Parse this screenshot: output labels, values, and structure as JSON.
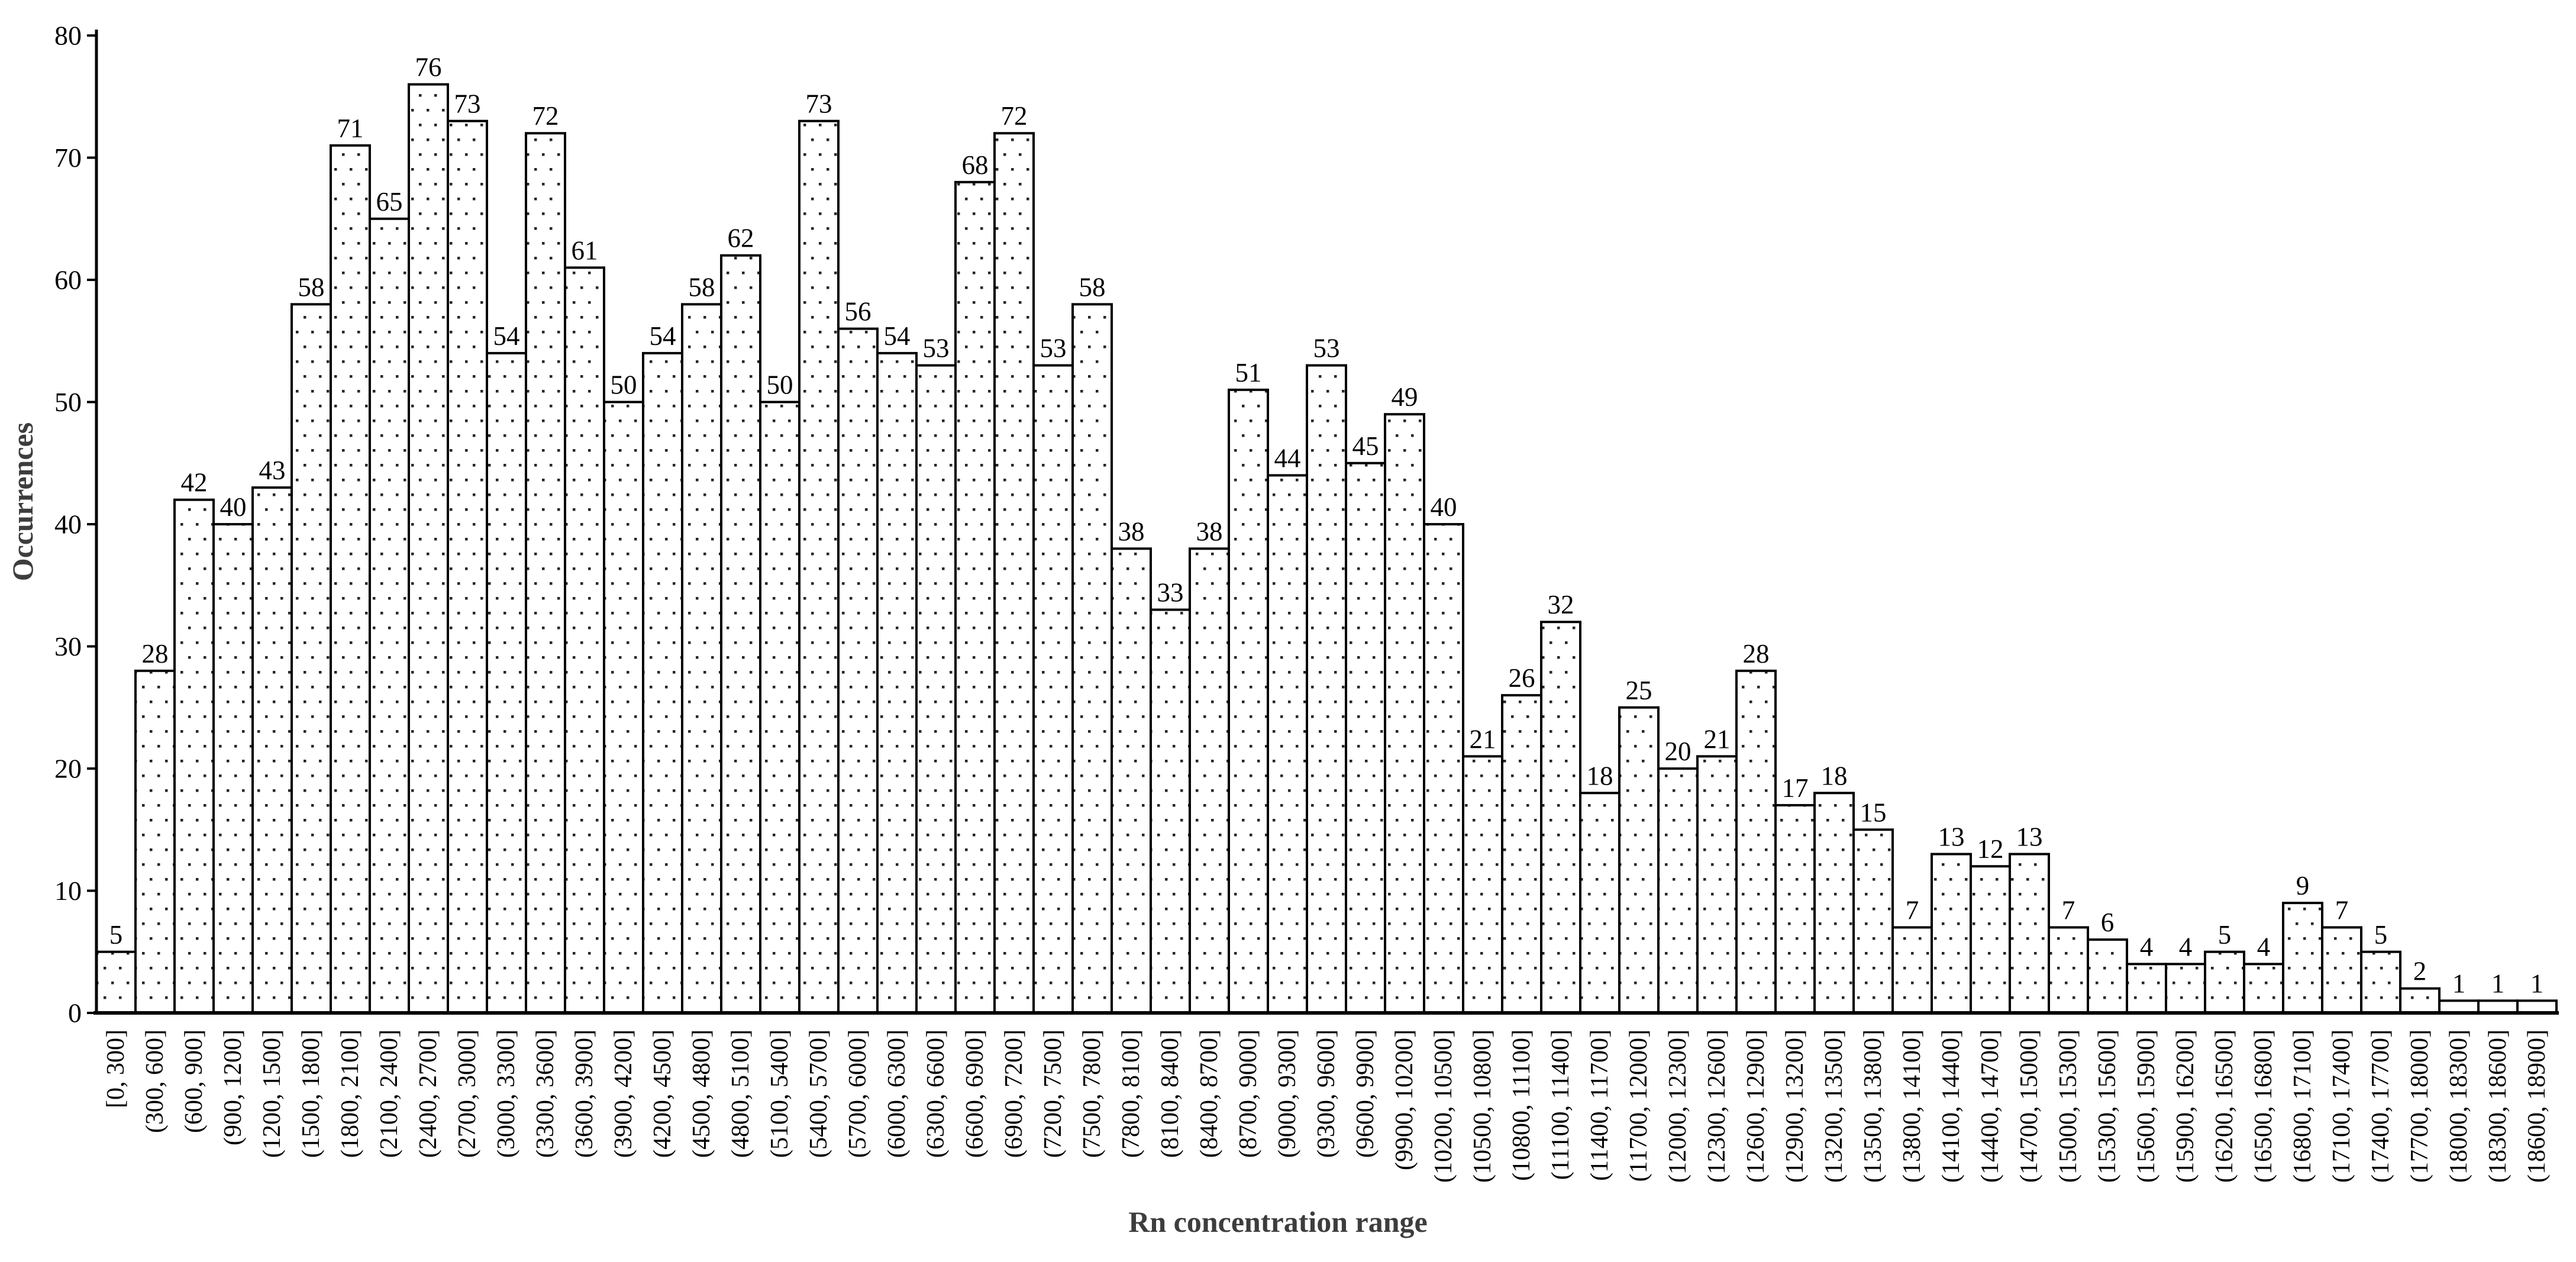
{
  "chart_data": {
    "type": "bar",
    "title": "",
    "xlabel": "Rn concentration range",
    "ylabel": "Occurrences",
    "ylim": [
      0,
      80
    ],
    "yticks": [
      0,
      10,
      20,
      30,
      40,
      50,
      60,
      70,
      80
    ],
    "grid": false,
    "legend": "none",
    "bar_style": "white bars with black outline and small dark polka-dot fill pattern, bars adjacent (histogram)",
    "categories": [
      "[0, 300]",
      "(300, 600]",
      "(600, 900]",
      "(900, 1200]",
      "(1200, 1500]",
      "(1500, 1800]",
      "(1800, 2100]",
      "(2100, 2400]",
      "(2400, 2700]",
      "(2700, 3000]",
      "(3000, 3300]",
      "(3300, 3600]",
      "(3600, 3900]",
      "(3900, 4200]",
      "(4200, 4500]",
      "(4500, 4800]",
      "(4800, 5100]",
      "(5100, 5400]",
      "(5400, 5700]",
      "(5700, 6000]",
      "(6000, 6300]",
      "(6300, 6600]",
      "(6600, 6900]",
      "(6900, 7200]",
      "(7200, 7500]",
      "(7500, 7800]",
      "(7800, 8100]",
      "(8100, 8400]",
      "(8400, 8700]",
      "(8700, 9000]",
      "(9000, 9300]",
      "(9300, 9600]",
      "(9600, 9900]",
      "(9900, 10200]",
      "(10200, 10500]",
      "(10500, 10800]",
      "(10800, 11100]",
      "(11100, 11400]",
      "(11400, 11700]",
      "(11700, 12000]",
      "(12000, 12300]",
      "(12300, 12600]",
      "(12600, 12900]",
      "(12900, 13200]",
      "(13200, 13500]",
      "(13500, 13800]",
      "(13800, 14100]",
      "(14100, 14400]",
      "(14400, 14700]",
      "(14700, 15000]",
      "(15000, 15300]",
      "(15300, 15600]",
      "(15600, 15900]",
      "(15900, 16200]",
      "(16200, 16500]",
      "(16500, 16800]",
      "(16800, 17100]",
      "(17100, 17400]",
      "(17400, 17700]",
      "(17700, 18000]",
      "(18000, 18300]",
      "(18300, 18600]",
      "(18600, 18900]"
    ],
    "values": [
      5,
      28,
      42,
      40,
      43,
      58,
      71,
      65,
      76,
      73,
      54,
      72,
      61,
      50,
      54,
      58,
      62,
      50,
      73,
      56,
      54,
      53,
      68,
      72,
      53,
      58,
      38,
      33,
      38,
      51,
      44,
      53,
      45,
      49,
      40,
      21,
      26,
      32,
      18,
      25,
      20,
      21,
      28,
      17,
      18,
      15,
      7,
      13,
      12,
      13,
      7,
      6,
      4,
      4,
      5,
      4,
      9,
      7,
      5,
      2,
      1,
      1,
      1
    ],
    "colors": {
      "bar_fill_background": "#ffffff",
      "bar_dot": "#262626",
      "bar_border": "#000000",
      "axis_line": "#000000",
      "tick_label": "#000000",
      "axis_title": "#3d3d3d"
    }
  }
}
